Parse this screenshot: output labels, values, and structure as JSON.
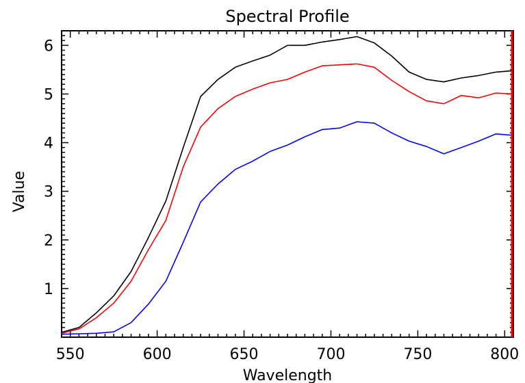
{
  "chart_data": {
    "type": "line",
    "title": "Spectral Profile",
    "xlabel": "Wavelength",
    "ylabel": "Value",
    "xlim": [
      545,
      805
    ],
    "ylim": [
      0,
      6.3
    ],
    "xticks": [
      550,
      600,
      650,
      700,
      750,
      800
    ],
    "yticks": [
      1,
      2,
      3,
      4,
      5,
      6
    ],
    "grid": false,
    "marker_x": 805,
    "colors": {
      "marker": "#ff0000"
    },
    "series": [
      {
        "color": "#000000",
        "x": [
          545,
          555,
          565,
          575,
          585,
          595,
          605,
          615,
          625,
          635,
          645,
          655,
          665,
          675,
          685,
          695,
          705,
          715,
          725,
          735,
          745,
          755,
          765,
          775,
          785,
          795,
          805
        ],
        "y": [
          0.1,
          0.2,
          0.5,
          0.85,
          1.35,
          2.05,
          2.8,
          3.9,
          4.95,
          5.3,
          5.55,
          5.68,
          5.8,
          6.0,
          6.0,
          6.07,
          6.12,
          6.18,
          6.05,
          5.78,
          5.45,
          5.3,
          5.25,
          5.33,
          5.38,
          5.45,
          5.48
        ]
      },
      {
        "color": "#ff0000",
        "x": [
          545,
          555,
          565,
          575,
          585,
          595,
          605,
          615,
          625,
          635,
          645,
          655,
          665,
          675,
          685,
          695,
          705,
          715,
          725,
          735,
          745,
          755,
          765,
          775,
          785,
          795,
          805
        ],
        "y": [
          0.08,
          0.17,
          0.4,
          0.7,
          1.15,
          1.8,
          2.4,
          3.5,
          4.32,
          4.7,
          4.95,
          5.1,
          5.23,
          5.3,
          5.45,
          5.58,
          5.6,
          5.62,
          5.55,
          5.28,
          5.05,
          4.86,
          4.8,
          4.97,
          4.92,
          5.02,
          5.0
        ]
      },
      {
        "color": "#0000ff",
        "x": [
          545,
          555,
          565,
          575,
          585,
          595,
          605,
          615,
          625,
          635,
          645,
          655,
          665,
          675,
          685,
          695,
          705,
          715,
          725,
          735,
          745,
          755,
          765,
          775,
          785,
          795,
          805
        ],
        "y": [
          0.06,
          0.07,
          0.08,
          0.11,
          0.3,
          0.68,
          1.15,
          1.95,
          2.78,
          3.15,
          3.45,
          3.62,
          3.82,
          3.95,
          4.12,
          4.27,
          4.3,
          4.43,
          4.4,
          4.2,
          4.03,
          3.92,
          3.77,
          3.9,
          4.03,
          4.18,
          4.15
        ]
      }
    ]
  }
}
